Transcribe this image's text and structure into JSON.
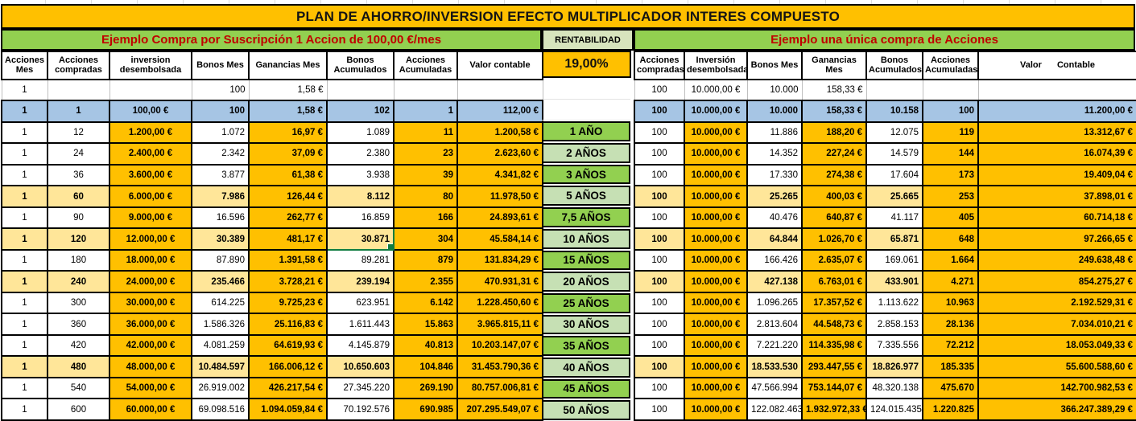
{
  "title": "PLAN DE AHORRO/INVERSION EFECTO MULTIPLICADOR INTERES COMPUESTO",
  "colors": {
    "orange": "#FFC000",
    "cream": "#FFE699",
    "blue": "#A6C5E4",
    "green_bright": "#92D050",
    "green_light": "#C6E0B4",
    "rent_bg": "#D7E4BD",
    "banner_text": "#C00000",
    "grid_thin": "#BFBFBF",
    "select_green": "#107C41"
  },
  "middle": {
    "rentabilidad_label": "RENTABILIDAD",
    "rate": "19,00%",
    "years": [
      "",
      "",
      "1 AÑO",
      "2 AÑOS",
      "3 AÑOS",
      "5 AÑOS",
      "7,5 AÑOS",
      "10 AÑOS",
      "15 AÑOS",
      "20 AÑOS",
      "25 AÑOS",
      "30 AÑOS",
      "35 AÑOS",
      "40 AÑOS",
      "45 AÑOS",
      "50 AÑOS"
    ]
  },
  "left_section": {
    "banner": "Ejemplo Compra por Suscripción 1 Accion de 100,00 €/mes",
    "headers": [
      "Acciones Mes",
      "Acciones compradas",
      "inversion desembolsada",
      "Bonos Mes",
      "Ganancias Mes",
      "Bonos Acumulados",
      "Acciones Acumuladas",
      "Valor contable"
    ],
    "selection": {
      "row": 7,
      "col": 5
    },
    "cream_rows": [
      5,
      7,
      9,
      13
    ],
    "rows": [
      [
        "1",
        "",
        "",
        "100",
        "1,58 €",
        "",
        "",
        ""
      ],
      [
        "1",
        "1",
        "100,00 €",
        "100",
        "1,58 €",
        "102",
        "1",
        "112,00 €"
      ],
      [
        "1",
        "12",
        "1.200,00 €",
        "1.072",
        "16,97 €",
        "1.089",
        "11",
        "1.200,58 €"
      ],
      [
        "1",
        "24",
        "2.400,00 €",
        "2.342",
        "37,09 €",
        "2.380",
        "23",
        "2.623,60 €"
      ],
      [
        "1",
        "36",
        "3.600,00 €",
        "3.877",
        "61,38 €",
        "3.938",
        "39",
        "4.341,82 €"
      ],
      [
        "1",
        "60",
        "6.000,00 €",
        "7.986",
        "126,44 €",
        "8.112",
        "80",
        "11.978,50 €"
      ],
      [
        "1",
        "90",
        "9.000,00 €",
        "16.596",
        "262,77 €",
        "16.859",
        "166",
        "24.893,61 €"
      ],
      [
        "1",
        "120",
        "12.000,00 €",
        "30.389",
        "481,17 €",
        "30.871",
        "304",
        "45.584,14 €"
      ],
      [
        "1",
        "180",
        "18.000,00 €",
        "87.890",
        "1.391,58 €",
        "89.281",
        "879",
        "131.834,29 €"
      ],
      [
        "1",
        "240",
        "24.000,00 €",
        "235.466",
        "3.728,21 €",
        "239.194",
        "2.355",
        "470.931,31 €"
      ],
      [
        "1",
        "300",
        "30.000,00 €",
        "614.225",
        "9.725,23 €",
        "623.951",
        "6.142",
        "1.228.450,60 €"
      ],
      [
        "1",
        "360",
        "36.000,00 €",
        "1.586.326",
        "25.116,83 €",
        "1.611.443",
        "15.863",
        "3.965.815,11 €"
      ],
      [
        "1",
        "420",
        "42.000,00 €",
        "4.081.259",
        "64.619,93 €",
        "4.145.879",
        "40.813",
        "10.203.147,07 €"
      ],
      [
        "1",
        "480",
        "48.000,00 €",
        "10.484.597",
        "166.006,12 €",
        "10.650.603",
        "104.846",
        "31.453.790,36 €"
      ],
      [
        "1",
        "540",
        "54.000,00 €",
        "26.919.002",
        "426.217,54 €",
        "27.345.220",
        "269.190",
        "80.757.006,81 €"
      ],
      [
        "1",
        "600",
        "60.000,00 €",
        "69.098.516",
        "1.094.059,84 €",
        "70.192.576",
        "690.985",
        "207.295.549,07 €"
      ]
    ]
  },
  "right_section": {
    "banner": "Ejemplo una única compra de Acciones",
    "headers": [
      "Acciones compradas",
      "Inversión desembolsada",
      "Bonos Mes",
      "Ganancias Mes",
      "Bonos Acumulados",
      "Acciones Acumuladas",
      "Valor Contable"
    ],
    "cream_rows": [
      5,
      7,
      9,
      13
    ],
    "rows": [
      [
        "100",
        "10.000,00 €",
        "10.000",
        "158,33 €",
        "",
        "",
        ""
      ],
      [
        "100",
        "10.000,00 €",
        "10.000",
        "158,33 €",
        "10.158",
        "100",
        "11.200,00 €"
      ],
      [
        "100",
        "10.000,00 €",
        "11.886",
        "188,20 €",
        "12.075",
        "119",
        "13.312,67 €"
      ],
      [
        "100",
        "10.000,00 €",
        "14.352",
        "227,24 €",
        "14.579",
        "144",
        "16.074,39 €"
      ],
      [
        "100",
        "10.000,00 €",
        "17.330",
        "274,38 €",
        "17.604",
        "173",
        "19.409,04 €"
      ],
      [
        "100",
        "10.000,00 €",
        "25.265",
        "400,03 €",
        "25.665",
        "253",
        "37.898,01 €"
      ],
      [
        "100",
        "10.000,00 €",
        "40.476",
        "640,87 €",
        "41.117",
        "405",
        "60.714,18 €"
      ],
      [
        "100",
        "10.000,00 €",
        "64.844",
        "1.026,70 €",
        "65.871",
        "648",
        "97.266,65 €"
      ],
      [
        "100",
        "10.000,00 €",
        "166.426",
        "2.635,07 €",
        "169.061",
        "1.664",
        "249.638,48 €"
      ],
      [
        "100",
        "10.000,00 €",
        "427.138",
        "6.763,01 €",
        "433.901",
        "4.271",
        "854.275,27 €"
      ],
      [
        "100",
        "10.000,00 €",
        "1.096.265",
        "17.357,52 €",
        "1.113.622",
        "10.963",
        "2.192.529,31 €"
      ],
      [
        "100",
        "10.000,00 €",
        "2.813.604",
        "44.548,73 €",
        "2.858.153",
        "28.136",
        "7.034.010,21 €"
      ],
      [
        "100",
        "10.000,00 €",
        "7.221.220",
        "114.335,98 €",
        "7.335.556",
        "72.212",
        "18.053.049,33 €"
      ],
      [
        "100",
        "10.000,00 €",
        "18.533.530",
        "293.447,55 €",
        "18.826.977",
        "185.335",
        "55.600.588,60 €"
      ],
      [
        "100",
        "10.000,00 €",
        "47.566.994",
        "753.144,07 €",
        "48.320.138",
        "475.670",
        "142.700.982,53 €"
      ],
      [
        "100",
        "10.000,00 €",
        "122.082.463",
        "1.932.972,33 €",
        "124.015.435",
        "1.220.825",
        "366.247.389,29 €"
      ]
    ]
  }
}
